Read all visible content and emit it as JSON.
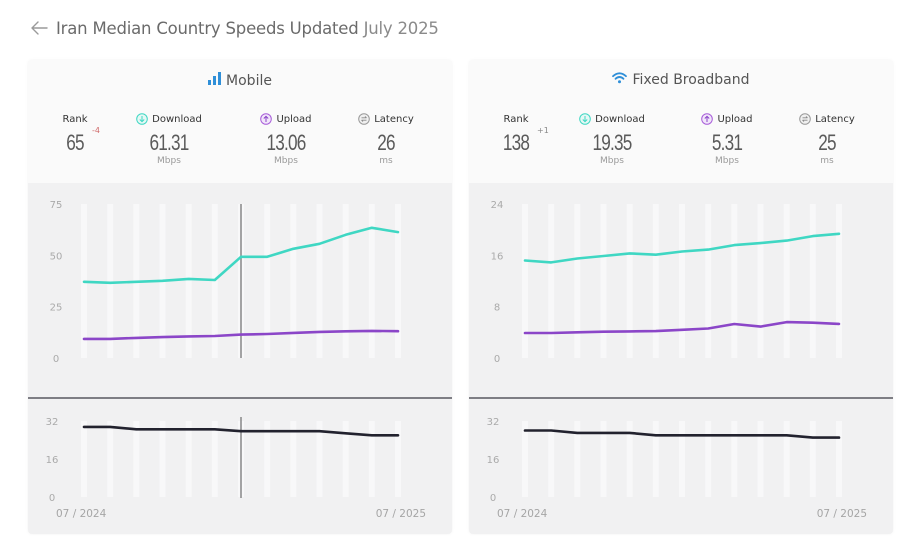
{
  "header": {
    "back_icon": "arrow-left-icon",
    "title_main": "Iran Median Country Speeds Updated",
    "title_date": "July 2025"
  },
  "colors": {
    "download": "#3fd7c3",
    "upload": "#8b46c8",
    "latency": "#22222e",
    "icon_blue": "#2f8fd8",
    "rank_down": "#d06b6b",
    "marker": "#8e8e8e"
  },
  "panels": [
    {
      "id": "mobile",
      "title": "Mobile",
      "title_icon": "signal-bars-icon",
      "rank": {
        "label": "Rank",
        "value": "65",
        "delta": "-4"
      },
      "download": {
        "label": "Download",
        "value": "61.31",
        "unit": "Mbps",
        "icon": "download-circle-icon"
      },
      "upload": {
        "label": "Upload",
        "value": "13.06",
        "unit": "Mbps",
        "icon": "upload-circle-icon"
      },
      "latency": {
        "label": "Latency",
        "value": "26",
        "unit": "ms",
        "icon": "latency-circle-icon"
      },
      "x_start_label": "07 / 2024",
      "x_end_label": "07 / 2025"
    },
    {
      "id": "fixed",
      "title": "Fixed Broadband",
      "title_icon": "wifi-icon",
      "rank": {
        "label": "Rank",
        "value": "138",
        "delta": "+1"
      },
      "download": {
        "label": "Download",
        "value": "19.35",
        "unit": "Mbps",
        "icon": "download-circle-icon"
      },
      "upload": {
        "label": "Upload",
        "value": "5.31",
        "unit": "Mbps",
        "icon": "upload-circle-icon"
      },
      "latency": {
        "label": "Latency",
        "value": "25",
        "unit": "ms",
        "icon": "latency-circle-icon"
      },
      "x_start_label": "07 / 2024",
      "x_end_label": "07 / 2025"
    }
  ],
  "chart_data": [
    {
      "type": "line",
      "title": "Mobile - Speed (Mbps)",
      "x": [
        "07/2024",
        "08/2024",
        "09/2024",
        "10/2024",
        "11/2024",
        "12/2024",
        "01/2025",
        "02/2025",
        "03/2025",
        "04/2025",
        "05/2025",
        "06/2025",
        "07/2025"
      ],
      "series": [
        {
          "name": "Download",
          "values": [
            37.1,
            36.6,
            37.1,
            37.6,
            38.5,
            38.0,
            49.3,
            49.3,
            53.2,
            55.6,
            60.0,
            63.4,
            61.31
          ]
        },
        {
          "name": "Upload",
          "values": [
            9.3,
            9.3,
            9.8,
            10.2,
            10.5,
            10.7,
            11.4,
            11.7,
            12.2,
            12.7,
            13.0,
            13.2,
            13.06
          ]
        }
      ],
      "yticks": [
        0,
        25,
        50,
        75
      ],
      "ylim": [
        0,
        75
      ],
      "marker_index": 6,
      "xlabel": "",
      "ylabel": "Mbps",
      "grid": true
    },
    {
      "type": "line",
      "title": "Mobile - Latency (ms)",
      "x": [
        "07/2024",
        "08/2024",
        "09/2024",
        "10/2024",
        "11/2024",
        "12/2024",
        "01/2025",
        "02/2025",
        "03/2025",
        "04/2025",
        "05/2025",
        "06/2025",
        "07/2025"
      ],
      "series": [
        {
          "name": "Latency",
          "values": [
            29.5,
            29.5,
            28.5,
            28.5,
            28.5,
            28.5,
            27.7,
            27.7,
            27.7,
            27.7,
            26.8,
            26,
            26
          ]
        }
      ],
      "yticks": [
        0,
        16,
        32
      ],
      "ylim": [
        0,
        32
      ],
      "marker_index": 6,
      "x_tick_labels": [
        "07 / 2024",
        "07 / 2025"
      ],
      "xlabel": "",
      "ylabel": "ms",
      "grid": true
    },
    {
      "type": "line",
      "title": "Fixed Broadband - Speed (Mbps)",
      "x": [
        "07/2024",
        "08/2024",
        "09/2024",
        "10/2024",
        "11/2024",
        "12/2024",
        "01/2025",
        "02/2025",
        "03/2025",
        "04/2025",
        "05/2025",
        "06/2025",
        "07/2025"
      ],
      "series": [
        {
          "name": "Download",
          "values": [
            15.2,
            14.9,
            15.5,
            15.9,
            16.3,
            16.1,
            16.6,
            16.9,
            17.6,
            17.9,
            18.3,
            19.0,
            19.35
          ]
        },
        {
          "name": "Upload",
          "values": [
            3.9,
            3.9,
            4.0,
            4.1,
            4.15,
            4.2,
            4.4,
            4.6,
            5.3,
            4.9,
            5.6,
            5.5,
            5.31
          ]
        }
      ],
      "yticks": [
        0,
        8,
        16,
        24
      ],
      "ylim": [
        0,
        24
      ],
      "xlabel": "",
      "ylabel": "Mbps",
      "grid": true
    },
    {
      "type": "line",
      "title": "Fixed Broadband - Latency (ms)",
      "x": [
        "07/2024",
        "08/2024",
        "09/2024",
        "10/2024",
        "11/2024",
        "12/2024",
        "01/2025",
        "02/2025",
        "03/2025",
        "04/2025",
        "05/2025",
        "06/2025",
        "07/2025"
      ],
      "series": [
        {
          "name": "Latency",
          "values": [
            28,
            28,
            27,
            27,
            27,
            26,
            26,
            26,
            26,
            26,
            26,
            25,
            25
          ]
        }
      ],
      "yticks": [
        0,
        16,
        32
      ],
      "ylim": [
        0,
        32
      ],
      "x_tick_labels": [
        "07 / 2024",
        "07 / 2025"
      ],
      "xlabel": "",
      "ylabel": "ms",
      "grid": true
    }
  ]
}
